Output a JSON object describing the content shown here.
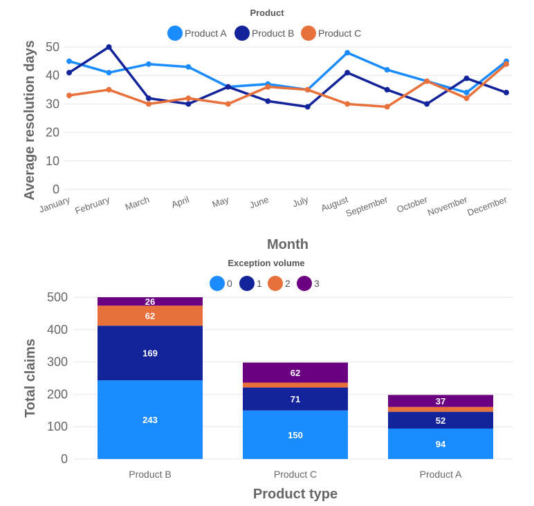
{
  "colors": {
    "product_a": "#1a8cff",
    "product_b": "#13239a",
    "product_c": "#e8703a",
    "exc_0": "#1a8cff",
    "exc_1": "#13239a",
    "exc_2": "#e8703a",
    "exc_3": "#6b0080"
  },
  "chart_data": [
    {
      "type": "line",
      "legend_title": "Product",
      "xlabel": "Month",
      "ylabel": "Average resolution days",
      "ylim": [
        0,
        50
      ],
      "yticks": [
        0,
        10,
        20,
        30,
        40,
        50
      ],
      "grid": true,
      "legend_position": "top-center",
      "categories": [
        "January",
        "February",
        "March",
        "April",
        "May",
        "June",
        "July",
        "August",
        "September",
        "October",
        "November",
        "December"
      ],
      "series": [
        {
          "name": "Product A",
          "color": "#1a8cff",
          "values": [
            45,
            41,
            44,
            43,
            36,
            37,
            35,
            48,
            42,
            38,
            34,
            45
          ]
        },
        {
          "name": "Product B",
          "color": "#13239a",
          "values": [
            41,
            50,
            32,
            30,
            36,
            31,
            29,
            41,
            35,
            30,
            39,
            34
          ]
        },
        {
          "name": "Product C",
          "color": "#e8703a",
          "values": [
            33,
            35,
            30,
            32,
            30,
            36,
            35,
            30,
            29,
            38,
            32,
            44
          ]
        }
      ]
    },
    {
      "type": "bar",
      "stacked": true,
      "legend_title": "Exception volume",
      "xlabel": "Product type",
      "ylabel": "Total claims",
      "ylim": [
        0,
        500
      ],
      "yticks": [
        0,
        100,
        200,
        300,
        400,
        500
      ],
      "grid": true,
      "legend_position": "top-center",
      "categories": [
        "Product B",
        "Product C",
        "Product A"
      ],
      "series": [
        {
          "name": "0",
          "color": "#1a8cff",
          "values": [
            243,
            150,
            94
          ]
        },
        {
          "name": "1",
          "color": "#13239a",
          "values": [
            169,
            71,
            52
          ]
        },
        {
          "name": "2",
          "color": "#e8703a",
          "values": [
            62,
            15,
            15
          ]
        },
        {
          "name": "3",
          "color": "#6b0080",
          "values": [
            26,
            62,
            37
          ]
        }
      ],
      "labels": [
        [
          "243",
          "150",
          "94"
        ],
        [
          "169",
          "71",
          "52"
        ],
        [
          "62",
          "",
          ""
        ],
        [
          "26",
          "62",
          "37"
        ]
      ]
    }
  ]
}
